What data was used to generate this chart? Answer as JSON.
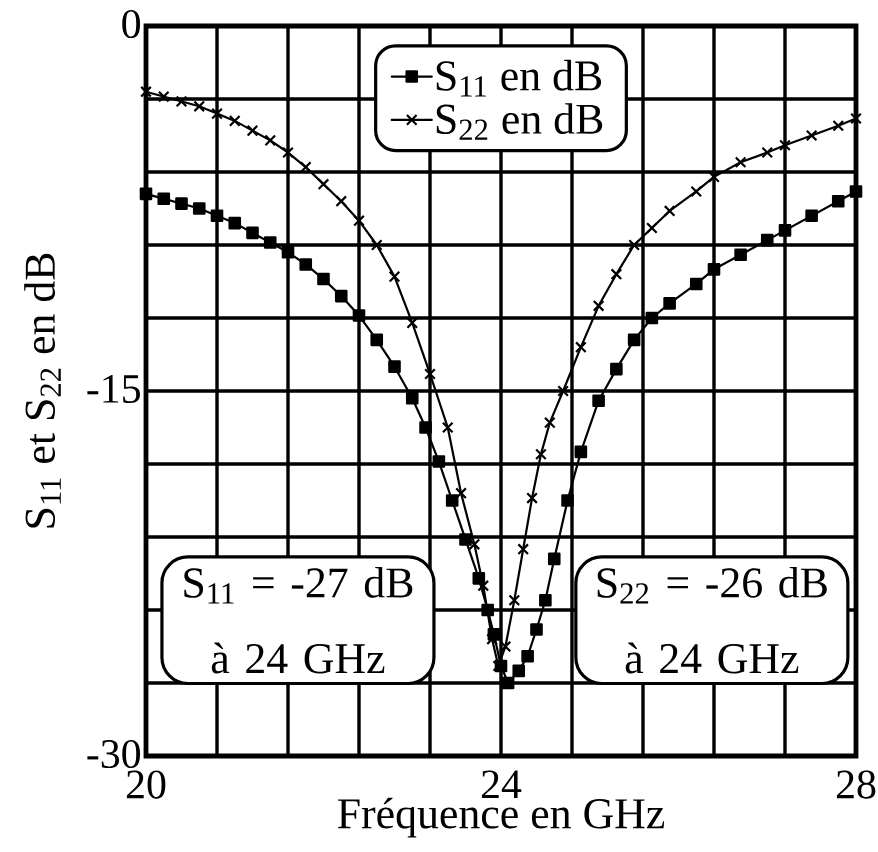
{
  "chart_data": {
    "type": "line",
    "xlabel": "Fréquence en GHz",
    "ylabel": "S$_{11}$ et S$_{22}$ en dB",
    "xlim": [
      20,
      28
    ],
    "ylim": [
      -30,
      0
    ],
    "xticks": [
      20,
      {
        "value": 20.8,
        "label": null
      },
      {
        "value": 21.6,
        "label": null
      },
      {
        "value": 22.4,
        "label": null
      },
      {
        "value": 23.2,
        "label": null
      },
      24,
      {
        "value": 24.8,
        "label": null
      },
      {
        "value": 25.6,
        "label": null
      },
      {
        "value": 26.4,
        "label": null
      },
      {
        "value": 27.2,
        "label": null
      },
      28
    ],
    "yticks": [
      -30,
      {
        "value": -27,
        "label": null
      },
      {
        "value": -24,
        "label": null
      },
      {
        "value": -21,
        "label": null
      },
      {
        "value": -18,
        "label": null
      },
      -15,
      {
        "value": -12,
        "label": null
      },
      {
        "value": -9,
        "label": null
      },
      {
        "value": -6,
        "label": null
      },
      {
        "value": -3,
        "label": null
      },
      0
    ],
    "grid": true,
    "legend": "top",
    "annotations": [
      "S$_{11}$ = -27 dB à 24 GHz",
      "S$_{22}$ = -26 dB à 24 GHz"
    ],
    "series": [
      {
        "name": "S$_{11}$ en dB",
        "color": "#000000",
        "marker": "square",
        "x": [
          20.0,
          20.2,
          20.4,
          20.6,
          20.8,
          21.0,
          21.2,
          21.4,
          21.6,
          21.8,
          22.0,
          22.2,
          22.4,
          22.6,
          22.8,
          23.0,
          23.15,
          23.3,
          23.45,
          23.6,
          23.75,
          23.85,
          23.92,
          24.0,
          24.08,
          24.2,
          24.3,
          24.4,
          24.5,
          24.6,
          24.75,
          24.9,
          25.1,
          25.3,
          25.5,
          25.7,
          25.9,
          26.2,
          26.4,
          26.7,
          27.0,
          27.2,
          27.5,
          27.8,
          28.0
        ],
        "values": [
          -6.9,
          -7.1,
          -7.3,
          -7.5,
          -7.8,
          -8.1,
          -8.5,
          -8.9,
          -9.3,
          -9.8,
          -10.4,
          -11.1,
          -11.9,
          -12.9,
          -14.0,
          -15.3,
          -16.5,
          -17.9,
          -19.5,
          -21.1,
          -22.7,
          -24.0,
          -25.0,
          -26.3,
          -27.0,
          -26.5,
          -25.9,
          -24.8,
          -23.6,
          -21.9,
          -19.5,
          -17.5,
          -15.4,
          -14.1,
          -12.9,
          -12.0,
          -11.4,
          -10.6,
          -10.0,
          -9.4,
          -8.8,
          -8.4,
          -7.8,
          -7.2,
          -6.8
        ]
      },
      {
        "name": "S$_{22}$ en dB",
        "color": "#000000",
        "marker": "cross",
        "x": [
          20.0,
          20.2,
          20.4,
          20.6,
          20.8,
          21.0,
          21.2,
          21.4,
          21.6,
          21.8,
          22.0,
          22.2,
          22.4,
          22.6,
          22.8,
          23.0,
          23.2,
          23.4,
          23.55,
          23.7,
          23.8,
          23.9,
          23.97,
          24.05,
          24.15,
          24.25,
          24.35,
          24.45,
          24.55,
          24.7,
          24.9,
          25.1,
          25.3,
          25.5,
          25.7,
          25.9,
          26.2,
          26.4,
          26.7,
          27.0,
          27.2,
          27.5,
          27.8,
          28.0
        ],
        "values": [
          -2.7,
          -2.9,
          -3.1,
          -3.3,
          -3.6,
          -3.9,
          -4.3,
          -4.7,
          -5.2,
          -5.8,
          -6.5,
          -7.2,
          -8.0,
          -9.0,
          -10.3,
          -12.2,
          -14.3,
          -16.5,
          -19.2,
          -21.3,
          -23.0,
          -25.2,
          -26.3,
          -25.5,
          -23.6,
          -21.5,
          -19.4,
          -17.6,
          -16.3,
          -15.0,
          -13.2,
          -11.5,
          -10.2,
          -9.0,
          -8.3,
          -7.6,
          -6.8,
          -6.2,
          -5.6,
          -5.2,
          -4.9,
          -4.5,
          -4.1,
          -3.8
        ]
      }
    ]
  }
}
